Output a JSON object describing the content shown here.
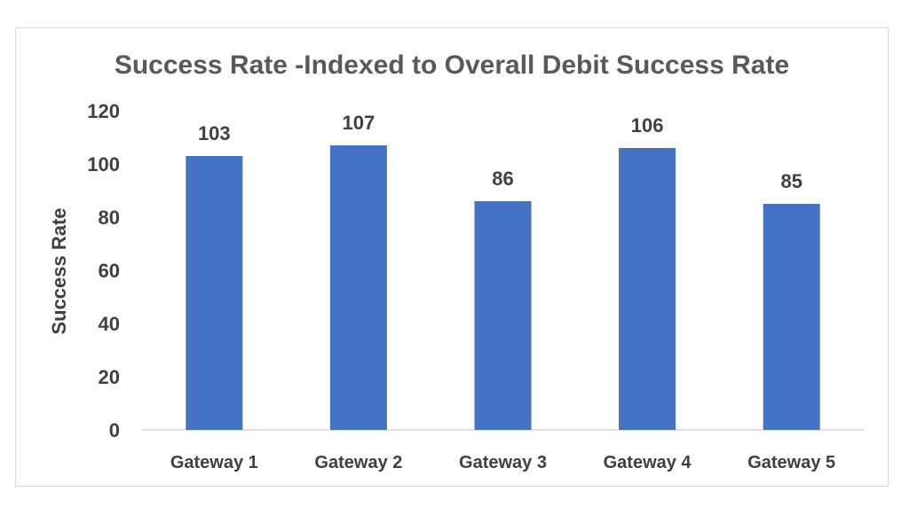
{
  "chart_data": {
    "type": "bar",
    "title": "Success Rate -Indexed to Overall Debit Success Rate",
    "xlabel": "",
    "ylabel": "Success Rate",
    "categories": [
      "Gateway 1",
      "Gateway 2",
      "Gateway 3",
      "Gateway 4",
      "Gateway 5"
    ],
    "values": [
      103,
      107,
      86,
      106,
      85
    ],
    "data_labels": [
      "103",
      "107",
      "86",
      "106",
      "85"
    ],
    "ylim": [
      0,
      120
    ],
    "yticks": [
      0,
      20,
      40,
      60,
      80,
      100,
      120
    ],
    "grid": false,
    "legend": "none",
    "bar_color": "#4472C4"
  }
}
